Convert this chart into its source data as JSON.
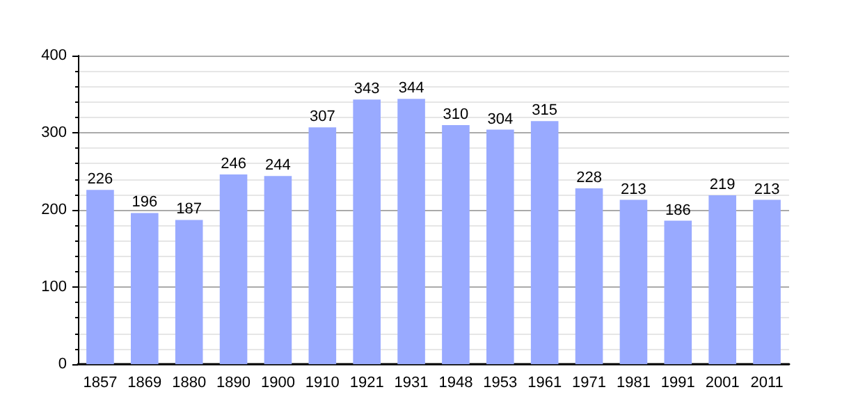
{
  "chart_data": {
    "type": "bar",
    "categories": [
      "1857",
      "1869",
      "1880",
      "1890",
      "1900",
      "1910",
      "1921",
      "1931",
      "1948",
      "1953",
      "1961",
      "1971",
      "1981",
      "1991",
      "2001",
      "2011"
    ],
    "values": [
      226,
      196,
      187,
      246,
      244,
      307,
      343,
      344,
      310,
      304,
      315,
      228,
      213,
      186,
      219,
      213
    ],
    "color": "#99aaff",
    "ylim": [
      0,
      400
    ],
    "yticks": [
      0,
      100,
      200,
      300,
      400
    ],
    "grid": "y",
    "data_labels": true
  }
}
